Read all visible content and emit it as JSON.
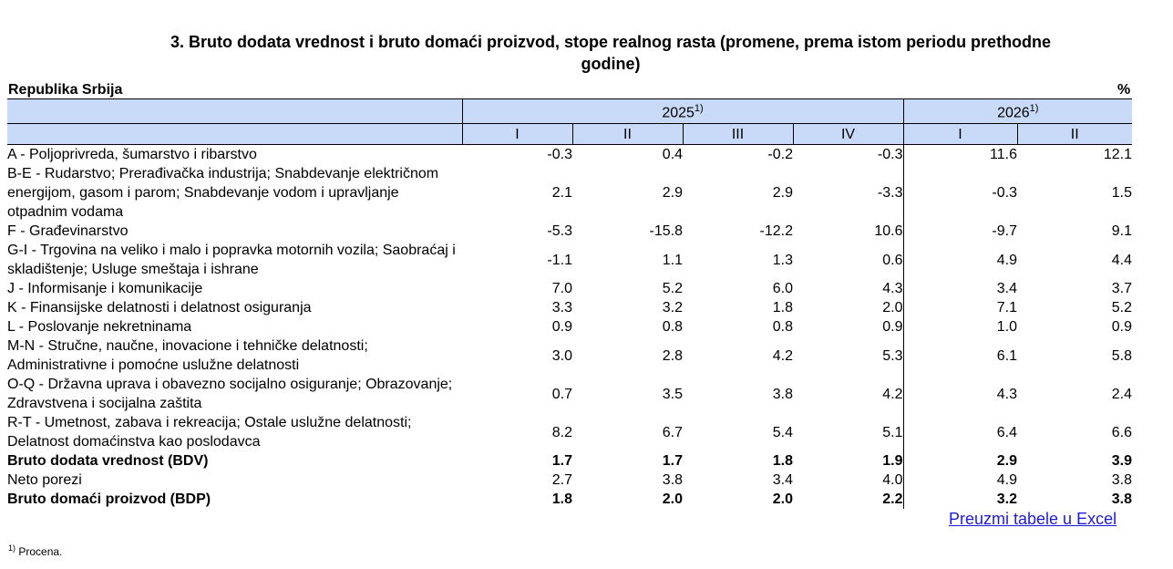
{
  "title": "3. Bruto dodata vrednost i bruto domaći proizvod, stope realnog rasta (promene, prema istom periodu prethodne godine)",
  "title_line1": "3. Bruto dodata vrednost i bruto domaći proizvod, stope realnog rasta (promene, prema istom periodu prethodne",
  "title_line2": "godine)",
  "region": "Republika Srbija",
  "unit": "%",
  "years": [
    {
      "label": "2025",
      "note": "1)"
    },
    {
      "label": "2026",
      "note": "1)"
    }
  ],
  "quarters": [
    "I",
    "II",
    "III",
    "IV",
    "I",
    "II"
  ],
  "rows": [
    {
      "name": "A - Poljoprivreda, šumarstvo i ribarstvo",
      "values": [
        "-0.3",
        "0.4",
        "-0.2",
        "-0.3",
        "11.6",
        "12.1"
      ]
    },
    {
      "name": "B-E - Rudarstvo; Prerađivačka industrija; Snabdevanje električnom energijom, gasom i parom; Snabdevanje vodom i upravljanje otpadnim vodama",
      "values": [
        "2.1",
        "2.9",
        "2.9",
        "-3.3",
        "-0.3",
        "1.5"
      ]
    },
    {
      "name": "F - Građevinarstvo",
      "values": [
        "-5.3",
        "-15.8",
        "-12.2",
        "10.6",
        "-9.7",
        "9.1"
      ]
    },
    {
      "name": "G-I - Trgovina na veliko i malo i popravka motornih vozila; Saobraćaj i skladištenje; Usluge smeštaja i ishrane",
      "values": [
        "-1.1",
        "1.1",
        "1.3",
        "0.6",
        "4.9",
        "4.4"
      ]
    },
    {
      "name": "J - Informisanje i komunikacije",
      "values": [
        "7.0",
        "5.2",
        "6.0",
        "4.3",
        "3.4",
        "3.7"
      ]
    },
    {
      "name": "K - Finansijske delatnosti i delatnost osiguranja",
      "values": [
        "3.3",
        "3.2",
        "1.8",
        "2.0",
        "7.1",
        "5.2"
      ]
    },
    {
      "name": "L - Poslovanje nekretninama",
      "values": [
        "0.9",
        "0.8",
        "0.8",
        "0.9",
        "1.0",
        "0.9"
      ]
    },
    {
      "name": "M-N - Stručne, naučne, inovacione i tehničke delatnosti; Administrativne i pomoćne uslužne delatnosti",
      "values": [
        "3.0",
        "2.8",
        "4.2",
        "5.3",
        "6.1",
        "5.8"
      ]
    },
    {
      "name": "O-Q - Državna uprava i obavezno socijalno osiguranje; Obrazovanje; Zdravstvena i socijalna zaštita",
      "values": [
        "0.7",
        "3.5",
        "3.8",
        "4.2",
        "4.3",
        "2.4"
      ]
    },
    {
      "name": "R-T - Umetnost, zabava i rekreacija; Ostale uslužne delatnosti; Delatnost domaćinstva kao poslodavca",
      "values": [
        "8.2",
        "6.7",
        "5.4",
        "5.1",
        "6.4",
        "6.6"
      ]
    },
    {
      "name": "Bruto dodata vrednost (BDV)",
      "values": [
        "1.7",
        "1.7",
        "1.8",
        "1.9",
        "2.9",
        "3.9"
      ],
      "bold": true
    },
    {
      "name": "Neto porezi",
      "values": [
        "2.7",
        "3.8",
        "3.4",
        "4.0",
        "4.9",
        "3.8"
      ]
    },
    {
      "name": "Bruto domaći proizvod (BDP)",
      "values": [
        "1.8",
        "2.0",
        "2.0",
        "2.2",
        "3.2",
        "3.8"
      ],
      "bold": true
    }
  ],
  "download_link": "Preuzmi tabele u Excel",
  "footnote": {
    "mark": "1)",
    "text": "Procena."
  }
}
